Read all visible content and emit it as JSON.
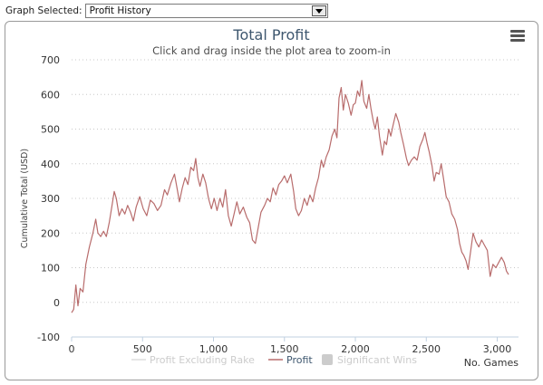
{
  "header": {
    "graph_label": "Graph Selected:",
    "graph_value": "Profit History"
  },
  "chart_data": {
    "type": "line",
    "title": "Total Profit",
    "subtitle": "Click and drag inside the plot area to zoom-in",
    "xlabel": "No. Games",
    "ylabel": "Cumulative Total (USD)",
    "xlim": [
      0,
      3150
    ],
    "ylim": [
      -100,
      700
    ],
    "x_ticks": [
      0,
      500,
      1000,
      1500,
      2000,
      2500,
      3000
    ],
    "x_tick_labels": [
      "0",
      "500",
      "1,000",
      "1,500",
      "2,000",
      "2,500",
      "3,000"
    ],
    "y_ticks": [
      -100,
      0,
      100,
      200,
      300,
      400,
      500,
      600,
      700
    ],
    "y_tick_labels": [
      "-100",
      "0",
      "100",
      "200",
      "300",
      "400",
      "500",
      "600",
      "700"
    ],
    "grid": true,
    "legend_position": "bottom-center",
    "series": [
      {
        "name": "Profit Excluding Rake",
        "visible": false,
        "color": "#d8d8d8",
        "points": []
      },
      {
        "name": "Profit",
        "visible": true,
        "color": "#b86c6c",
        "points": [
          [
            0,
            -30
          ],
          [
            15,
            -20
          ],
          [
            30,
            50
          ],
          [
            45,
            -10
          ],
          [
            60,
            40
          ],
          [
            80,
            30
          ],
          [
            100,
            110
          ],
          [
            125,
            160
          ],
          [
            150,
            200
          ],
          [
            170,
            240
          ],
          [
            185,
            200
          ],
          [
            205,
            190
          ],
          [
            225,
            205
          ],
          [
            245,
            190
          ],
          [
            265,
            230
          ],
          [
            285,
            280
          ],
          [
            300,
            320
          ],
          [
            315,
            300
          ],
          [
            335,
            250
          ],
          [
            355,
            270
          ],
          [
            375,
            255
          ],
          [
            395,
            280
          ],
          [
            415,
            260
          ],
          [
            435,
            235
          ],
          [
            455,
            275
          ],
          [
            480,
            305
          ],
          [
            505,
            270
          ],
          [
            530,
            250
          ],
          [
            555,
            295
          ],
          [
            580,
            285
          ],
          [
            605,
            265
          ],
          [
            630,
            280
          ],
          [
            655,
            325
          ],
          [
            675,
            310
          ],
          [
            700,
            345
          ],
          [
            725,
            370
          ],
          [
            745,
            325
          ],
          [
            760,
            290
          ],
          [
            780,
            330
          ],
          [
            800,
            360
          ],
          [
            820,
            340
          ],
          [
            840,
            390
          ],
          [
            860,
            380
          ],
          [
            875,
            415
          ],
          [
            890,
            360
          ],
          [
            905,
            335
          ],
          [
            925,
            370
          ],
          [
            945,
            345
          ],
          [
            965,
            300
          ],
          [
            985,
            270
          ],
          [
            1005,
            300
          ],
          [
            1025,
            265
          ],
          [
            1045,
            300
          ],
          [
            1065,
            275
          ],
          [
            1085,
            325
          ],
          [
            1105,
            250
          ],
          [
            1125,
            220
          ],
          [
            1145,
            255
          ],
          [
            1165,
            290
          ],
          [
            1185,
            255
          ],
          [
            1210,
            275
          ],
          [
            1235,
            245
          ],
          [
            1255,
            230
          ],
          [
            1275,
            180
          ],
          [
            1295,
            170
          ],
          [
            1315,
            215
          ],
          [
            1335,
            260
          ],
          [
            1360,
            280
          ],
          [
            1380,
            300
          ],
          [
            1400,
            290
          ],
          [
            1420,
            330
          ],
          [
            1440,
            310
          ],
          [
            1460,
            340
          ],
          [
            1480,
            350
          ],
          [
            1500,
            365
          ],
          [
            1520,
            345
          ],
          [
            1545,
            370
          ],
          [
            1565,
            320
          ],
          [
            1580,
            270
          ],
          [
            1600,
            250
          ],
          [
            1620,
            265
          ],
          [
            1640,
            300
          ],
          [
            1660,
            280
          ],
          [
            1680,
            310
          ],
          [
            1700,
            290
          ],
          [
            1720,
            330
          ],
          [
            1740,
            360
          ],
          [
            1760,
            410
          ],
          [
            1775,
            390
          ],
          [
            1795,
            420
          ],
          [
            1815,
            440
          ],
          [
            1835,
            480
          ],
          [
            1855,
            500
          ],
          [
            1870,
            475
          ],
          [
            1885,
            590
          ],
          [
            1900,
            620
          ],
          [
            1915,
            555
          ],
          [
            1930,
            600
          ],
          [
            1950,
            575
          ],
          [
            1970,
            540
          ],
          [
            1985,
            570
          ],
          [
            2000,
            575
          ],
          [
            2015,
            610
          ],
          [
            2030,
            595
          ],
          [
            2045,
            640
          ],
          [
            2060,
            580
          ],
          [
            2080,
            560
          ],
          [
            2095,
            600
          ],
          [
            2110,
            560
          ],
          [
            2125,
            525
          ],
          [
            2140,
            500
          ],
          [
            2155,
            535
          ],
          [
            2170,
            480
          ],
          [
            2190,
            425
          ],
          [
            2205,
            465
          ],
          [
            2220,
            455
          ],
          [
            2235,
            500
          ],
          [
            2250,
            480
          ],
          [
            2265,
            510
          ],
          [
            2285,
            545
          ],
          [
            2305,
            520
          ],
          [
            2320,
            490
          ],
          [
            2340,
            455
          ],
          [
            2360,
            415
          ],
          [
            2375,
            395
          ],
          [
            2395,
            410
          ],
          [
            2415,
            420
          ],
          [
            2435,
            410
          ],
          [
            2455,
            450
          ],
          [
            2475,
            470
          ],
          [
            2490,
            490
          ],
          [
            2505,
            460
          ],
          [
            2520,
            435
          ],
          [
            2540,
            395
          ],
          [
            2555,
            350
          ],
          [
            2570,
            375
          ],
          [
            2590,
            370
          ],
          [
            2605,
            400
          ],
          [
            2620,
            360
          ],
          [
            2640,
            305
          ],
          [
            2660,
            290
          ],
          [
            2680,
            255
          ],
          [
            2700,
            240
          ],
          [
            2720,
            210
          ],
          [
            2735,
            170
          ],
          [
            2750,
            145
          ],
          [
            2765,
            135
          ],
          [
            2780,
            120
          ],
          [
            2795,
            95
          ],
          [
            2810,
            140
          ],
          [
            2830,
            200
          ],
          [
            2850,
            175
          ],
          [
            2870,
            160
          ],
          [
            2890,
            180
          ],
          [
            2910,
            165
          ],
          [
            2930,
            150
          ],
          [
            2950,
            75
          ],
          [
            2970,
            110
          ],
          [
            2990,
            100
          ],
          [
            3010,
            115
          ],
          [
            3030,
            130
          ],
          [
            3050,
            115
          ],
          [
            3065,
            90
          ],
          [
            3080,
            80
          ]
        ]
      },
      {
        "name": "Significant Wins",
        "visible": false,
        "color": "#cccccc",
        "points": []
      }
    ]
  }
}
